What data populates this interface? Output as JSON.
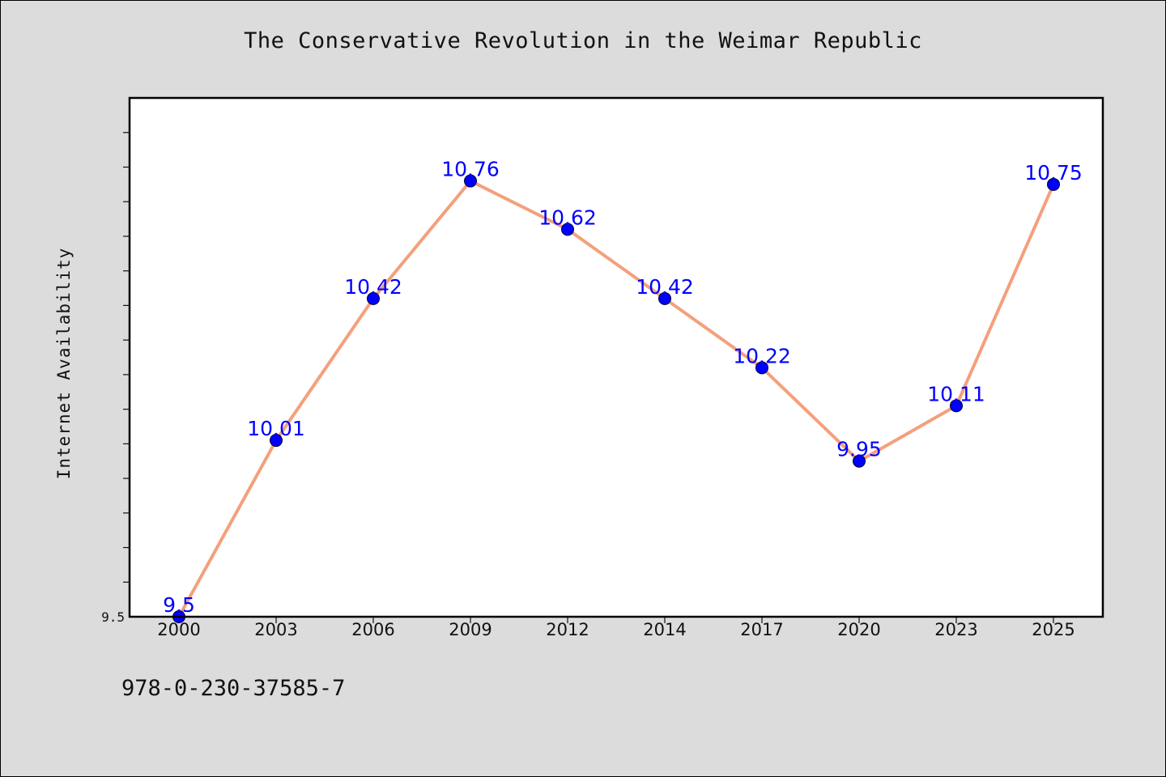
{
  "chart_data": {
    "type": "line",
    "title": "The Conservative Revolution in the Weimar Republic",
    "xlabel": "",
    "ylabel": "Internet Availability",
    "categories": [
      "2000",
      "2003",
      "2006",
      "2009",
      "2012",
      "2014",
      "2017",
      "2020",
      "2023",
      "2025"
    ],
    "series": [
      {
        "values": [
          9.5,
          10.01,
          10.42,
          10.76,
          10.62,
          10.42,
          10.22,
          9.95,
          10.11,
          10.75
        ],
        "labels": [
          "9.5",
          "10.01",
          "10.42",
          "10.76",
          "10.62",
          "10.42",
          "10.22",
          "9.95",
          "10.11",
          "10.75"
        ]
      }
    ],
    "ylim": [
      9.5,
      11.0
    ],
    "y_tick_labels": [
      "9.5"
    ],
    "grid": false,
    "line_color": "#f4a07c",
    "marker_color": "#0000ff",
    "label_color": "#0000ff"
  },
  "footer": {
    "code": "978-0-230-37585-7"
  }
}
